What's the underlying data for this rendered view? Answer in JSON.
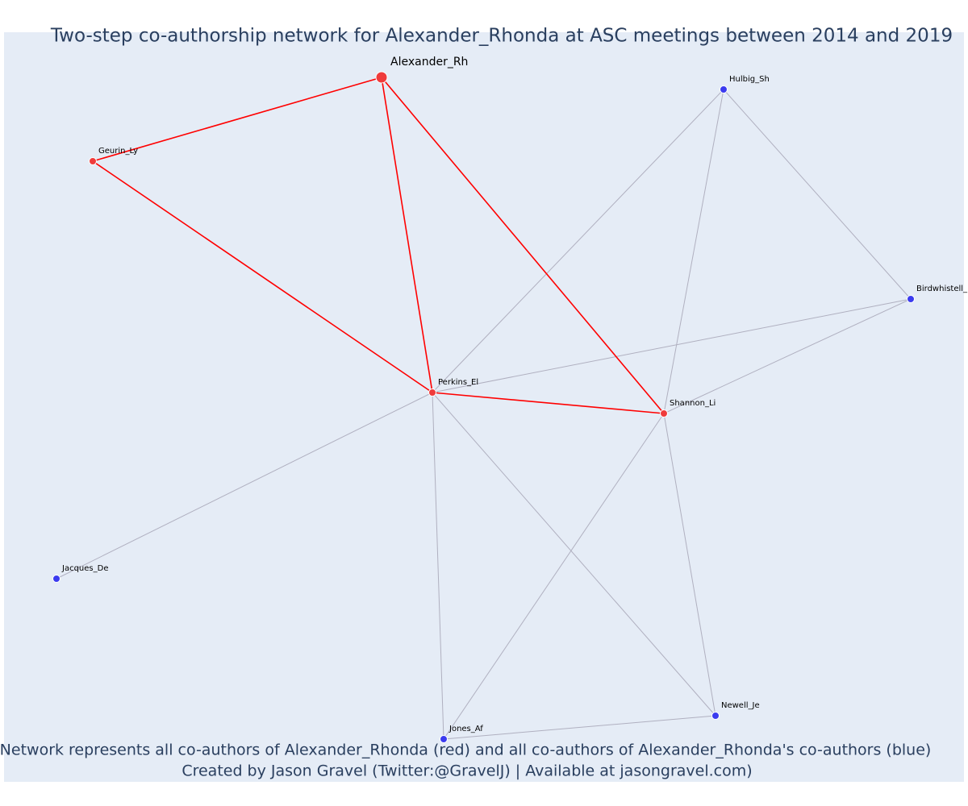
{
  "header": {
    "title": "Two-step co-authorship network for Alexander_Rhonda at ASC meetings between 2014 and 2019"
  },
  "nodes": [
    {
      "label": "Alexander_Rh",
      "color": "#ef3b3b"
    },
    {
      "label": "Geurin_Ly",
      "color": "#ef3b3b"
    },
    {
      "label": "Perkins_El",
      "color": "#ef3b3b"
    },
    {
      "label": "Shannon_Li",
      "color": "#ef3b3b"
    },
    {
      "label": "Hulbig_Sh",
      "color": "#3b3bef"
    },
    {
      "label": "Birdwhistell_",
      "color": "#3b3bef"
    },
    {
      "label": "Jacques_De",
      "color": "#3b3bef"
    },
    {
      "label": "Jones_Af",
      "color": "#3b3bef"
    },
    {
      "label": "Newell_Je",
      "color": "#3b3bef"
    }
  ],
  "edges": [
    {
      "from": 4,
      "to": 2,
      "color": "#b0b0c0"
    },
    {
      "from": 4,
      "to": 3,
      "color": "#b0b0c0"
    },
    {
      "from": 4,
      "to": 5,
      "color": "#b0b0c0"
    },
    {
      "from": 5,
      "to": 2,
      "color": "#b0b0c0"
    },
    {
      "from": 5,
      "to": 3,
      "color": "#b0b0c0"
    },
    {
      "from": 2,
      "to": 6,
      "color": "#b0b0c0"
    },
    {
      "from": 2,
      "to": 7,
      "color": "#b0b0c0"
    },
    {
      "from": 2,
      "to": 8,
      "color": "#b0b0c0"
    },
    {
      "from": 3,
      "to": 7,
      "color": "#b0b0c0"
    },
    {
      "from": 3,
      "to": 8,
      "color": "#b0b0c0"
    },
    {
      "from": 7,
      "to": 8,
      "color": "#b0b0c0"
    },
    {
      "from": 0,
      "to": 1,
      "color": "#ff0000"
    },
    {
      "from": 0,
      "to": 2,
      "color": "#ff0000"
    },
    {
      "from": 0,
      "to": 3,
      "color": "#ff0000"
    },
    {
      "from": 1,
      "to": 2,
      "color": "#ff0000"
    },
    {
      "from": 2,
      "to": 3,
      "color": "#ff0000"
    }
  ],
  "footer": {
    "lines": [
      "Network represents all co-authors of Alexander_Rhonda (red) and all co-authors of Alexander_Rhonda's co-authors (blue)",
      "Created by Jason Gravel (Twitter:@GravelJ) | Available at jasongravel.com)"
    ]
  }
}
